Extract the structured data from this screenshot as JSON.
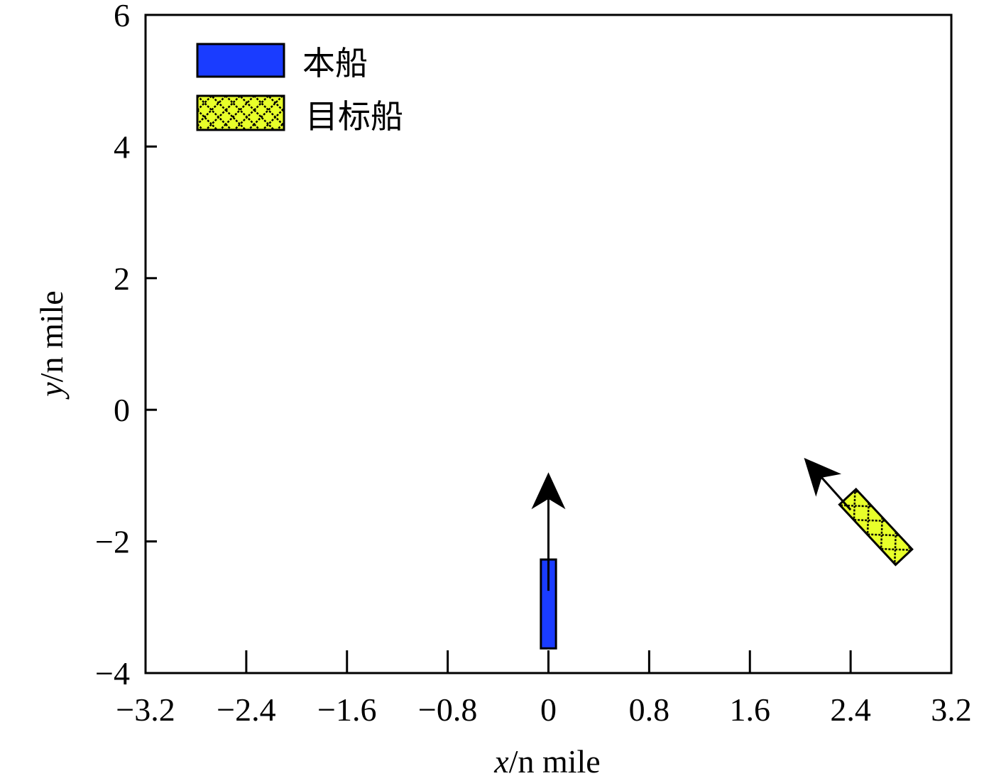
{
  "chart_data": {
    "type": "scatter",
    "xlabel": {
      "var": "x",
      "unit": "/n mile"
    },
    "ylabel": {
      "var": "y",
      "unit": "/n mile"
    },
    "xlim": [
      -3.2,
      3.2
    ],
    "ylim": [
      -4,
      6
    ],
    "xticks": [
      -3.2,
      -2.4,
      -1.6,
      -0.8,
      0,
      0.8,
      1.6,
      2.4,
      3.2
    ],
    "yticks": [
      -4,
      -2,
      0,
      2,
      4,
      6
    ],
    "xtick_labels": [
      "−3.2",
      "−2.4",
      "−1.6",
      "−0.8",
      "0",
      "0.8",
      "1.6",
      "2.4",
      "3.2"
    ],
    "ytick_labels": [
      "−4",
      "−2",
      "0",
      "2",
      "4",
      "6"
    ],
    "grid": false,
    "legend_position": "top-left",
    "series": [
      {
        "name": "本船",
        "color": "#1a3cff",
        "pattern": "solid",
        "center": [
          0,
          -2.95
        ],
        "length": 1.35,
        "width": 0.12,
        "heading_deg": 0,
        "arrow": {
          "from": [
            0,
            -2.75
          ],
          "to": [
            0,
            -0.95
          ]
        }
      },
      {
        "name": "目标船",
        "color": "#e8ff2a",
        "pattern": "crosshatch",
        "center": [
          2.6,
          -1.78
        ],
        "length": 1.25,
        "width": 0.18,
        "heading_deg": -43,
        "arrow": {
          "from": [
            2.4,
            -1.52
          ],
          "to": [
            2.03,
            -0.73
          ]
        }
      }
    ]
  }
}
